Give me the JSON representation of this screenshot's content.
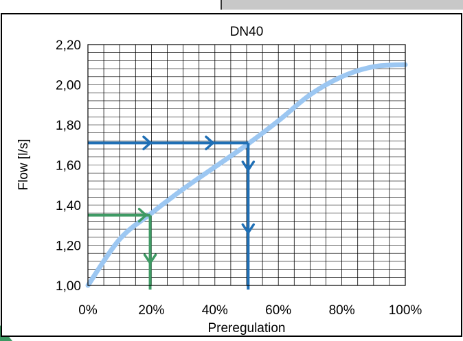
{
  "chart_data": {
    "type": "line",
    "title": "DN40",
    "xlabel": "Preregulation",
    "ylabel": "Flow [l/s]",
    "xlim": [
      0,
      100
    ],
    "ylim": [
      1.0,
      2.2
    ],
    "x_ticks": [
      "0%",
      "20%",
      "40%",
      "60%",
      "80%",
      "100%"
    ],
    "y_ticks": [
      "1,00",
      "1,20",
      "1,40",
      "1,60",
      "1,80",
      "2,00",
      "2,20"
    ],
    "grid": true,
    "legend": "none",
    "series": [
      {
        "color": "#9cc7f2",
        "x": [
          0,
          10,
          20,
          30,
          40,
          50,
          60,
          70,
          80,
          90,
          100
        ],
        "y": [
          1.0,
          1.23,
          1.36,
          1.48,
          1.59,
          1.7,
          1.82,
          1.95,
          2.04,
          2.09,
          2.1
        ]
      }
    ],
    "annotations": [
      {
        "name": "green-guide",
        "color": "#3e9a64",
        "flow": 1.35,
        "preregulation": 19.6
      },
      {
        "name": "blue-guide",
        "color": "#1f6fb5",
        "flow": 1.71,
        "preregulation": 50.5
      }
    ]
  },
  "decor": {
    "panel_color": "#c8c8c8",
    "corner_color": "#3e9a64"
  }
}
